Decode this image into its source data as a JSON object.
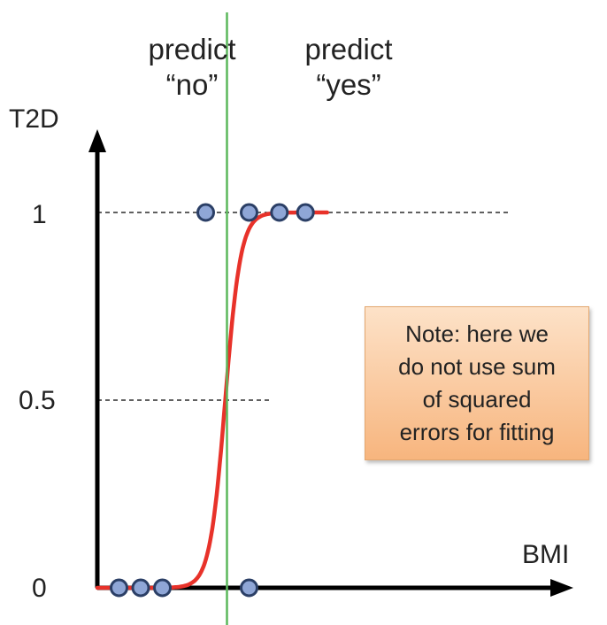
{
  "chart_data": {
    "type": "scatter",
    "xlabel": "BMI",
    "ylabel": "T2D",
    "yticks": [
      "0",
      "0.5",
      "1"
    ],
    "ylim": [
      0,
      1
    ],
    "regions": [
      {
        "line1": "predict",
        "line2": "“no”"
      },
      {
        "line1": "predict",
        "line2": "“yes”"
      }
    ],
    "decision_boundary_x": 30,
    "points": [
      {
        "x": 5,
        "y": 0
      },
      {
        "x": 10,
        "y": 0
      },
      {
        "x": 15,
        "y": 0
      },
      {
        "x": 25,
        "y": 1
      },
      {
        "x": 35,
        "y": 0
      },
      {
        "x": 35,
        "y": 1
      },
      {
        "x": 42,
        "y": 1
      },
      {
        "x": 48,
        "y": 1
      }
    ],
    "curve": {
      "type": "logistic",
      "midpoint": 29.5,
      "x_range": [
        0,
        53
      ]
    },
    "reference_lines_y": [
      0.5,
      1
    ],
    "colors": {
      "curve": "#e8322a",
      "boundary": "#5cb85c",
      "point_fill": "#8fa6d6",
      "point_stroke": "#2b3f66",
      "axis": "#000000"
    }
  },
  "note": {
    "lines": [
      "Note: here we",
      "do not use sum",
      "of squared",
      "errors for fitting"
    ]
  }
}
